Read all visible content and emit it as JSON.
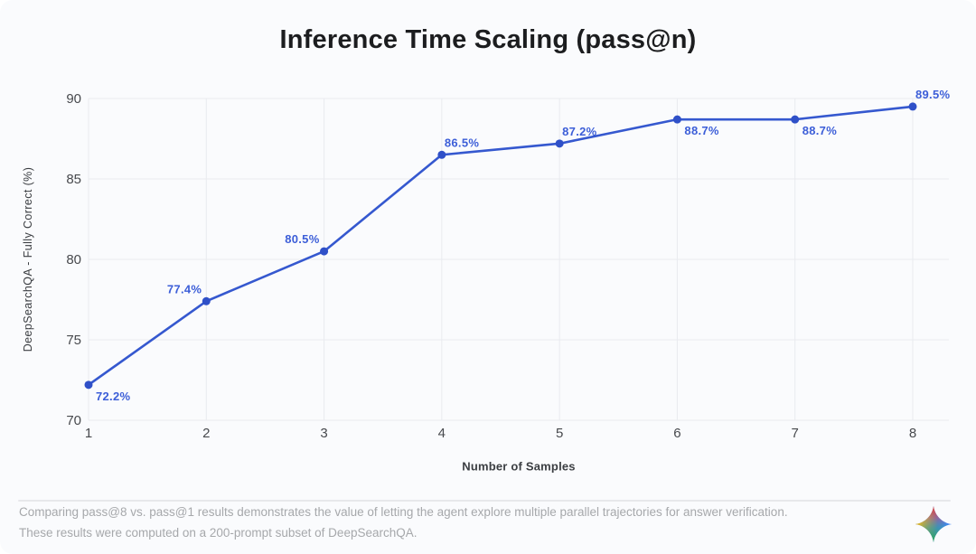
{
  "page": {
    "background": "#fafbfd"
  },
  "chart_data": {
    "type": "line",
    "title": "Inference Time Scaling (pass@n)",
    "xlabel": "Number of Samples",
    "ylabel": "DeepSearchQA - Fully Correct (%)",
    "x": [
      1,
      2,
      3,
      4,
      5,
      6,
      7,
      8
    ],
    "values": [
      72.2,
      77.4,
      80.5,
      86.5,
      87.2,
      88.7,
      88.7,
      89.5
    ],
    "point_labels": [
      "72.2%",
      "77.4%",
      "80.5%",
      "86.5%",
      "87.2%",
      "88.7%",
      "88.7%",
      "89.5%"
    ],
    "label_positions": [
      "below-right",
      "above-left",
      "above-left",
      "above-right",
      "above-right",
      "below-right",
      "below-right",
      "above-right"
    ],
    "x_ticks": [
      1,
      2,
      3,
      4,
      5,
      6,
      7,
      8
    ],
    "y_ticks": [
      70,
      75,
      80,
      85,
      90
    ],
    "xlim": [
      1,
      8
    ],
    "ylim": [
      70,
      90
    ],
    "grid": true,
    "legend": "none",
    "line_color": "#3558cf",
    "point_color": "#2f50c8",
    "label_color": "#3c5ed8"
  },
  "footer": {
    "line1": "Comparing pass@8 vs. pass@1 results demonstrates the value of letting the agent explore multiple parallel trajectories for answer verification.",
    "line2": "These results were computed on a 200-prompt subset of DeepSearchQA.",
    "logo_name": "gemini-sparkle",
    "logo_colors": {
      "top": "#ea4335",
      "left": "#fbbc04",
      "bottom": "#34a853",
      "center": "#4285f4"
    }
  }
}
